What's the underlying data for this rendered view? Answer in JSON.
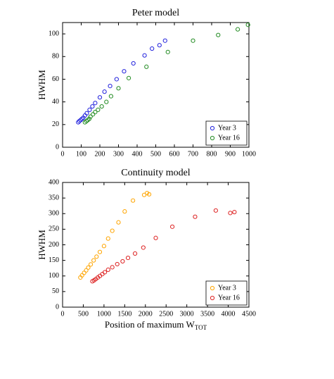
{
  "chart_data": [
    {
      "type": "scatter",
      "title": "Peter model",
      "y_label": "HWHM",
      "xlim": [
        0,
        1000
      ],
      "xticks": [
        0,
        100,
        200,
        300,
        400,
        500,
        600,
        700,
        800,
        900,
        1000
      ],
      "ylim": [
        0,
        110
      ],
      "yticks": [
        0,
        20,
        40,
        60,
        80,
        100
      ],
      "legend": "lower right",
      "series": [
        {
          "name": "Year 3",
          "color": "#2222dd",
          "x": [
            84,
            90,
            97,
            104,
            111,
            120,
            130,
            145,
            160,
            175,
            200,
            225,
            255,
            290,
            330,
            380,
            440,
            480,
            520,
            550
          ],
          "values": [
            22,
            23,
            24,
            25,
            26,
            28,
            30,
            33,
            36,
            39,
            44,
            49,
            54,
            60,
            67,
            74,
            81,
            87,
            90,
            94
          ]
        },
        {
          "name": "Year 16",
          "color": "#228b22",
          "x": [
            120,
            128,
            135,
            143,
            150,
            163,
            175,
            190,
            210,
            235,
            260,
            300,
            355,
            450,
            565,
            700,
            835,
            940,
            995
          ],
          "values": [
            22,
            23,
            24,
            25,
            27,
            29,
            31,
            33,
            36,
            40,
            45,
            52,
            61,
            71,
            84,
            94,
            99,
            104,
            108
          ]
        }
      ]
    },
    {
      "type": "scatter",
      "title": "Continuity model",
      "y_label": "HWHM",
      "x_label": {
        "text": "Position of maximum W",
        "subscript": "TOT"
      },
      "xlim": [
        0,
        4500
      ],
      "xticks": [
        0,
        500,
        1000,
        1500,
        2000,
        2500,
        3000,
        3500,
        4000,
        4500
      ],
      "ylim": [
        0,
        400
      ],
      "yticks": [
        0,
        50,
        100,
        150,
        200,
        250,
        300,
        350,
        400
      ],
      "legend": "lower right",
      "series": [
        {
          "name": "Year 3",
          "color": "#ffa500",
          "x": [
            430,
            470,
            520,
            570,
            620,
            680,
            750,
            820,
            900,
            1000,
            1100,
            1200,
            1350,
            1500,
            1700,
            1970,
            2040,
            2090
          ],
          "values": [
            95,
            102,
            110,
            118,
            127,
            137,
            150,
            162,
            177,
            196,
            220,
            245,
            272,
            307,
            342,
            360,
            366,
            362
          ]
        },
        {
          "name": "Year 16",
          "color": "#dd2222",
          "x": [
            720,
            760,
            800,
            850,
            900,
            960,
            1020,
            1100,
            1200,
            1320,
            1450,
            1580,
            1750,
            1950,
            2250,
            2650,
            3200,
            3700,
            4050,
            4150
          ],
          "values": [
            83,
            86,
            90,
            95,
            100,
            106,
            112,
            120,
            128,
            138,
            147,
            158,
            172,
            191,
            222,
            258,
            290,
            310,
            302,
            305
          ]
        }
      ]
    }
  ]
}
